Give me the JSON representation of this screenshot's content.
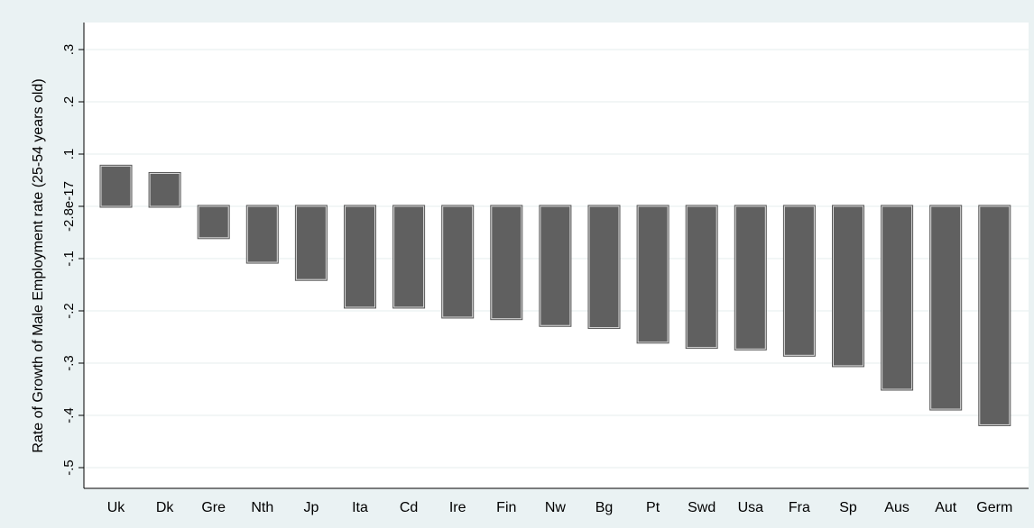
{
  "chart_data": {
    "type": "bar",
    "title": "",
    "xlabel": "",
    "ylabel": "Rate of Growth of Male Employment rate (25-54 years old)",
    "categories": [
      "Uk",
      "Dk",
      "Gre",
      "Nth",
      "Jp",
      "Ita",
      "Cd",
      "Ire",
      "Fin",
      "Nw",
      "Bg",
      "Pt",
      "Swd",
      "Usa",
      "Fra",
      "Sp",
      "Aus",
      "Aut",
      "Germ"
    ],
    "values": [
      0.077,
      0.063,
      -0.06,
      -0.107,
      -0.14,
      -0.193,
      -0.193,
      -0.212,
      -0.215,
      -0.228,
      -0.232,
      -0.26,
      -0.27,
      -0.273,
      -0.285,
      -0.305,
      -0.35,
      -0.388,
      -0.418
    ],
    "yticks": [
      -0.5,
      -0.4,
      -0.3,
      -0.2,
      -0.1,
      0,
      0.1,
      0.2,
      0.3
    ],
    "ytick_labels": [
      "-.5",
      "-.4",
      "-.3",
      "-.2",
      "-.1",
      "-2.8e-17",
      ".1",
      ".2",
      ".3"
    ],
    "ylim": [
      -0.5,
      0.3
    ],
    "grid": true,
    "legend": "none",
    "colors": {
      "background": "#eaf2f3",
      "plot_background": "#ffffff",
      "bar_fill": "#606060",
      "bar_outline": "#d8d8d8",
      "gridline": "#e6ecee",
      "axis": "#000000"
    }
  }
}
